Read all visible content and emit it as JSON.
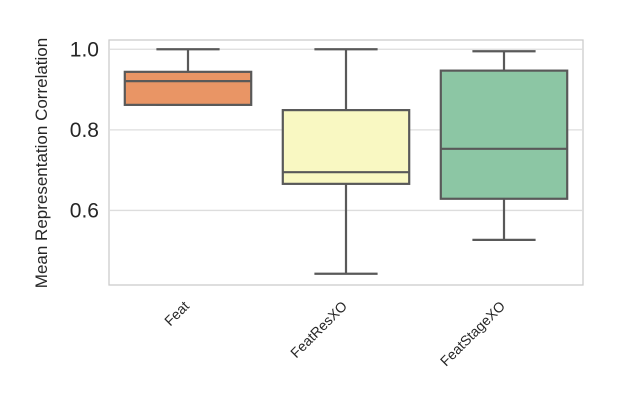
{
  "chart_data": {
    "type": "box",
    "ylabel": "Mean Representation Correlation",
    "xlabel": "",
    "ylim": [
      0.415,
      1.023
    ],
    "yticks": [
      0.6,
      0.8,
      1.0
    ],
    "ytick_labels": [
      "0.6",
      "0.8",
      "1.0"
    ],
    "grid": "horizontal",
    "categories": [
      "Feat",
      "FeatResXO",
      "FeatStageXO"
    ],
    "boxes": [
      {
        "category": "Feat",
        "whisker_low": 0.862,
        "q1": 0.862,
        "median": 0.921,
        "q3": 0.944,
        "whisker_high": 1.0,
        "color": "#e99565"
      },
      {
        "category": "FeatResXO",
        "whisker_low": 0.443,
        "q1": 0.666,
        "median": 0.695,
        "q3": 0.849,
        "whisker_high": 1.0,
        "color": "#f9f8c2"
      },
      {
        "category": "FeatStageXO",
        "whisker_low": 0.527,
        "q1": 0.629,
        "median": 0.753,
        "q3": 0.947,
        "whisker_high": 0.995,
        "color": "#8cc6a4"
      }
    ]
  }
}
